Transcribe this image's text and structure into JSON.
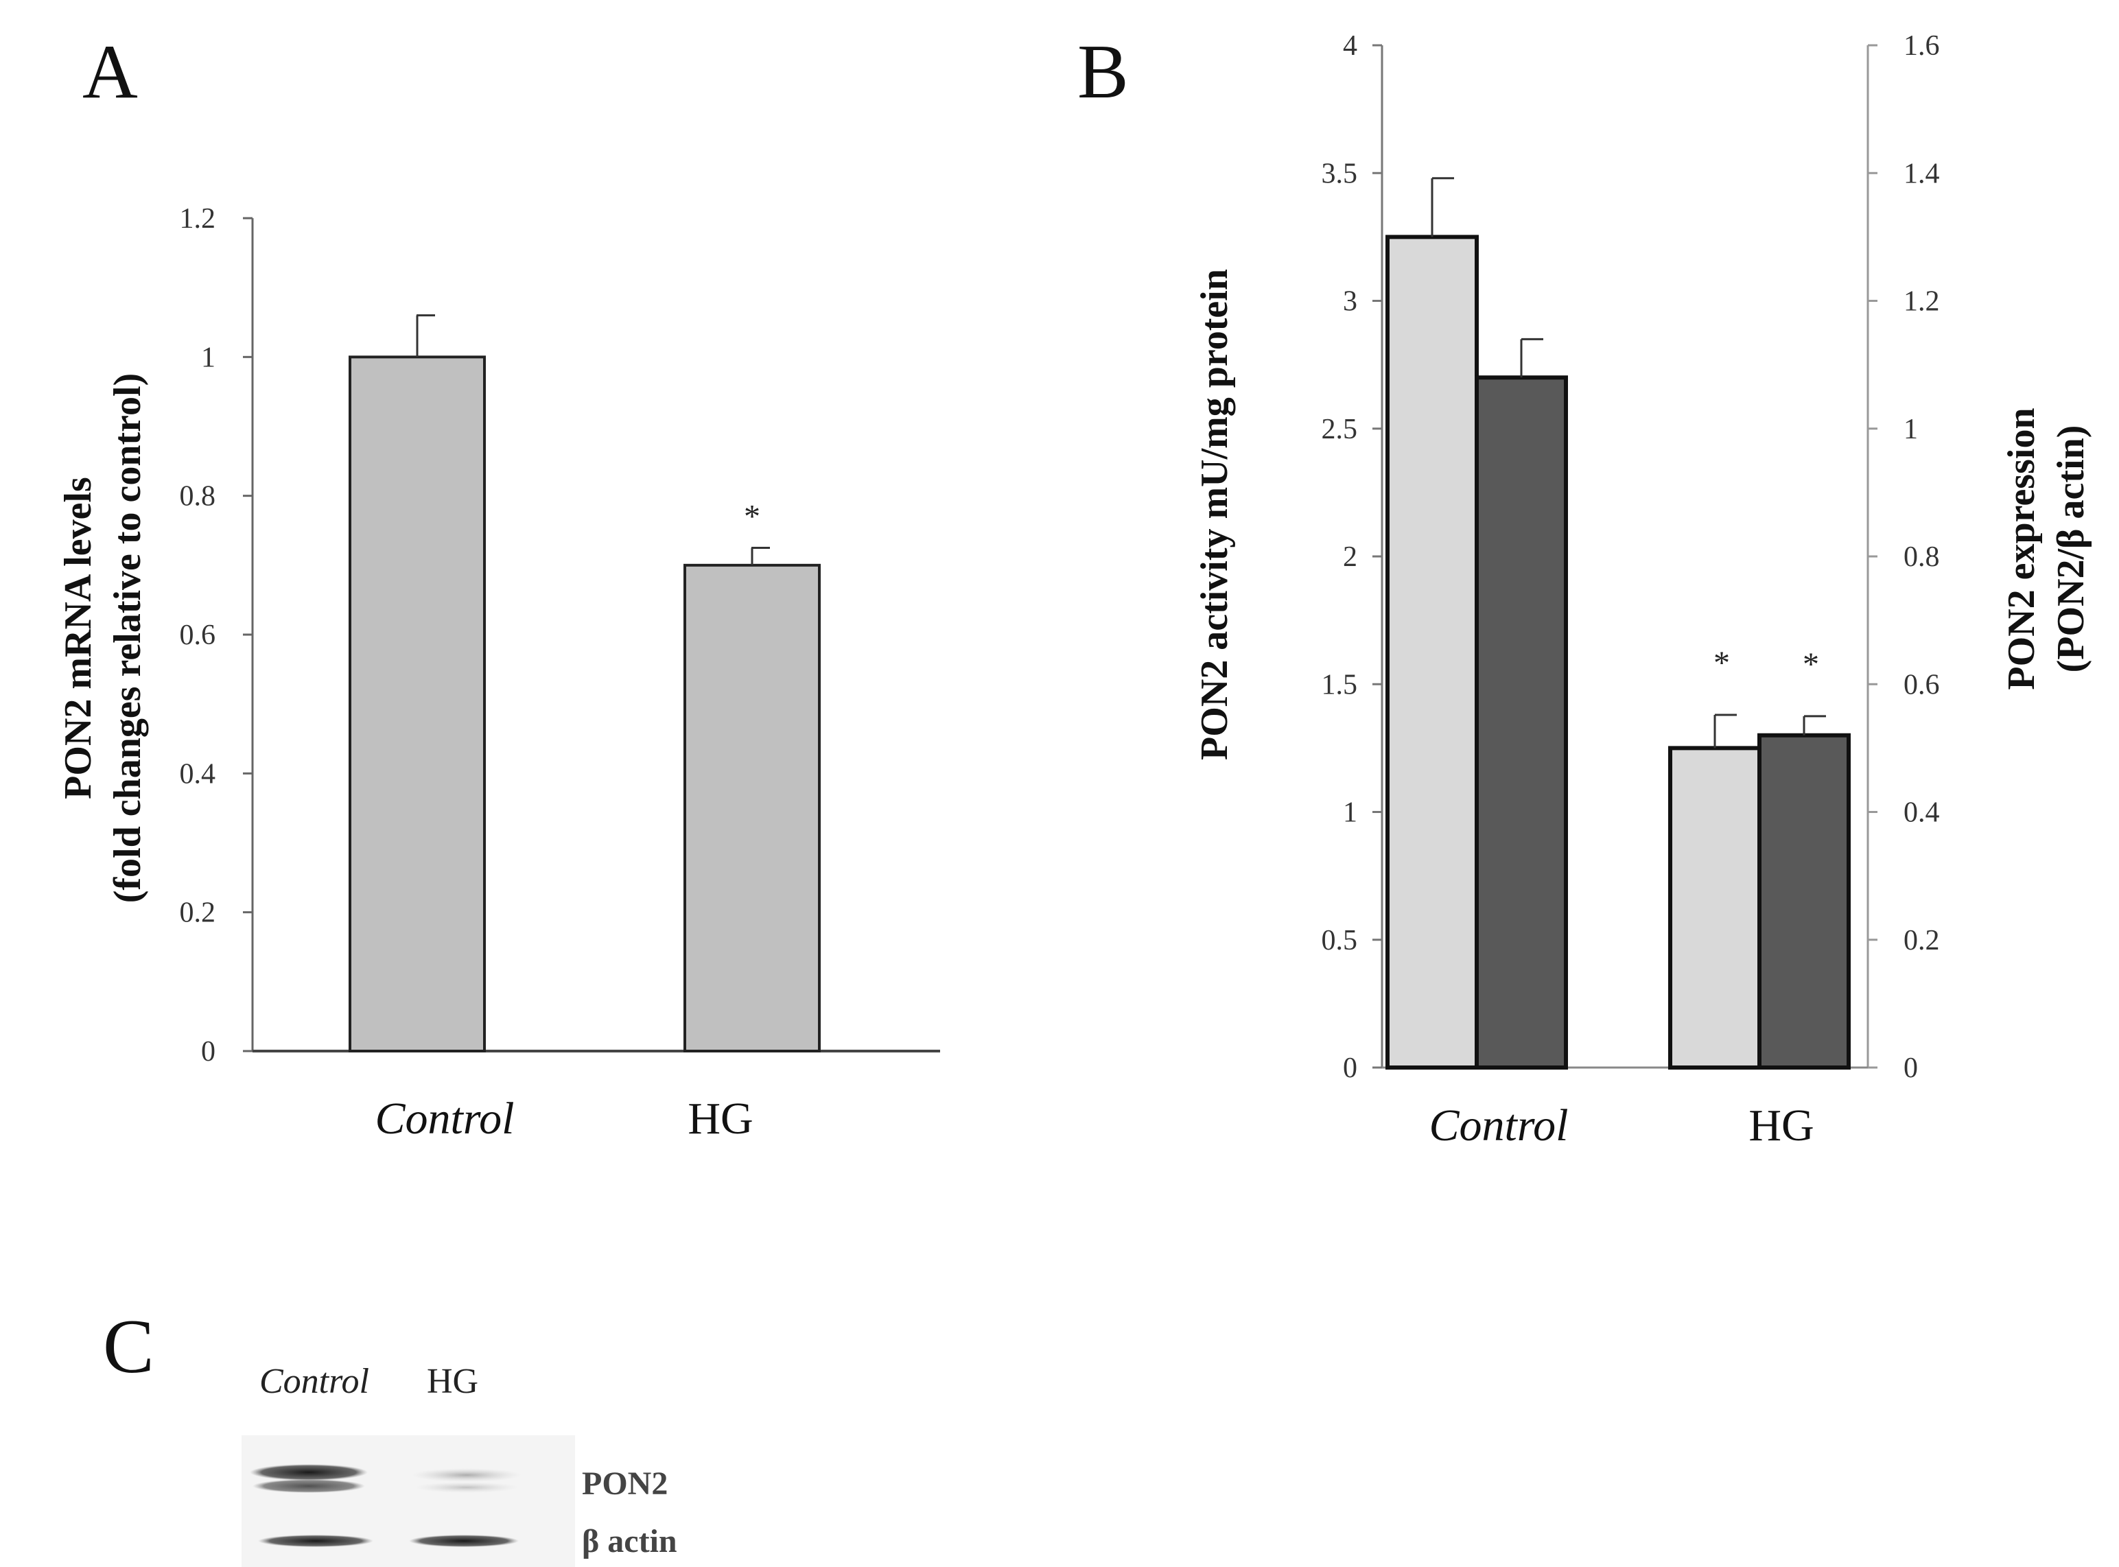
{
  "chart_data": [
    {
      "panel": "A",
      "type": "bar",
      "categories": [
        "Control",
        "HG"
      ],
      "values": [
        1.0,
        0.7
      ],
      "errors": [
        0.06,
        0.025
      ],
      "significance": [
        "",
        "*"
      ],
      "ylabel": "PON2 mRNA levels",
      "ylabel2": "(fold changes relative to control)",
      "ylim": [
        0,
        1.2
      ],
      "yticks": [
        "0",
        "0.2",
        "0.4",
        "0.6",
        "0.8",
        "1",
        "1.2"
      ],
      "color": "#c0c0c0"
    },
    {
      "panel": "B",
      "type": "bar",
      "categories": [
        "Control",
        "HG"
      ],
      "series": [
        {
          "name": "PON2 activity",
          "axis": "left",
          "values": [
            3.25,
            1.25
          ],
          "errors": [
            0.23,
            0.13
          ],
          "significance": [
            "",
            "*"
          ],
          "color": "#d9d9d9"
        },
        {
          "name": "PON2 expression",
          "axis": "right",
          "values": [
            1.08,
            0.52
          ],
          "errors": [
            0.06,
            0.03
          ],
          "significance": [
            "",
            "*"
          ],
          "color": "#595959"
        }
      ],
      "ylabel_left": "PON2 activity mU/mg protein",
      "ylim_left": [
        0,
        4
      ],
      "yticks_left": [
        "0",
        "0.5",
        "1",
        "1.5",
        "2",
        "2.5",
        "3",
        "3.5",
        "4"
      ],
      "ylabel_right": "PON2 expression",
      "ylabel_right2": "(PON2/β actin)",
      "ylim_right": [
        0,
        1.6
      ],
      "yticks_right": [
        "0",
        "0.2",
        "0.4",
        "0.6",
        "0.8",
        "1",
        "1.2",
        "1.4",
        "1.6"
      ]
    }
  ],
  "western_blot": {
    "panel": "C",
    "lanes": [
      "Control",
      "HG"
    ],
    "bands": [
      "PON2",
      "β actin"
    ]
  }
}
